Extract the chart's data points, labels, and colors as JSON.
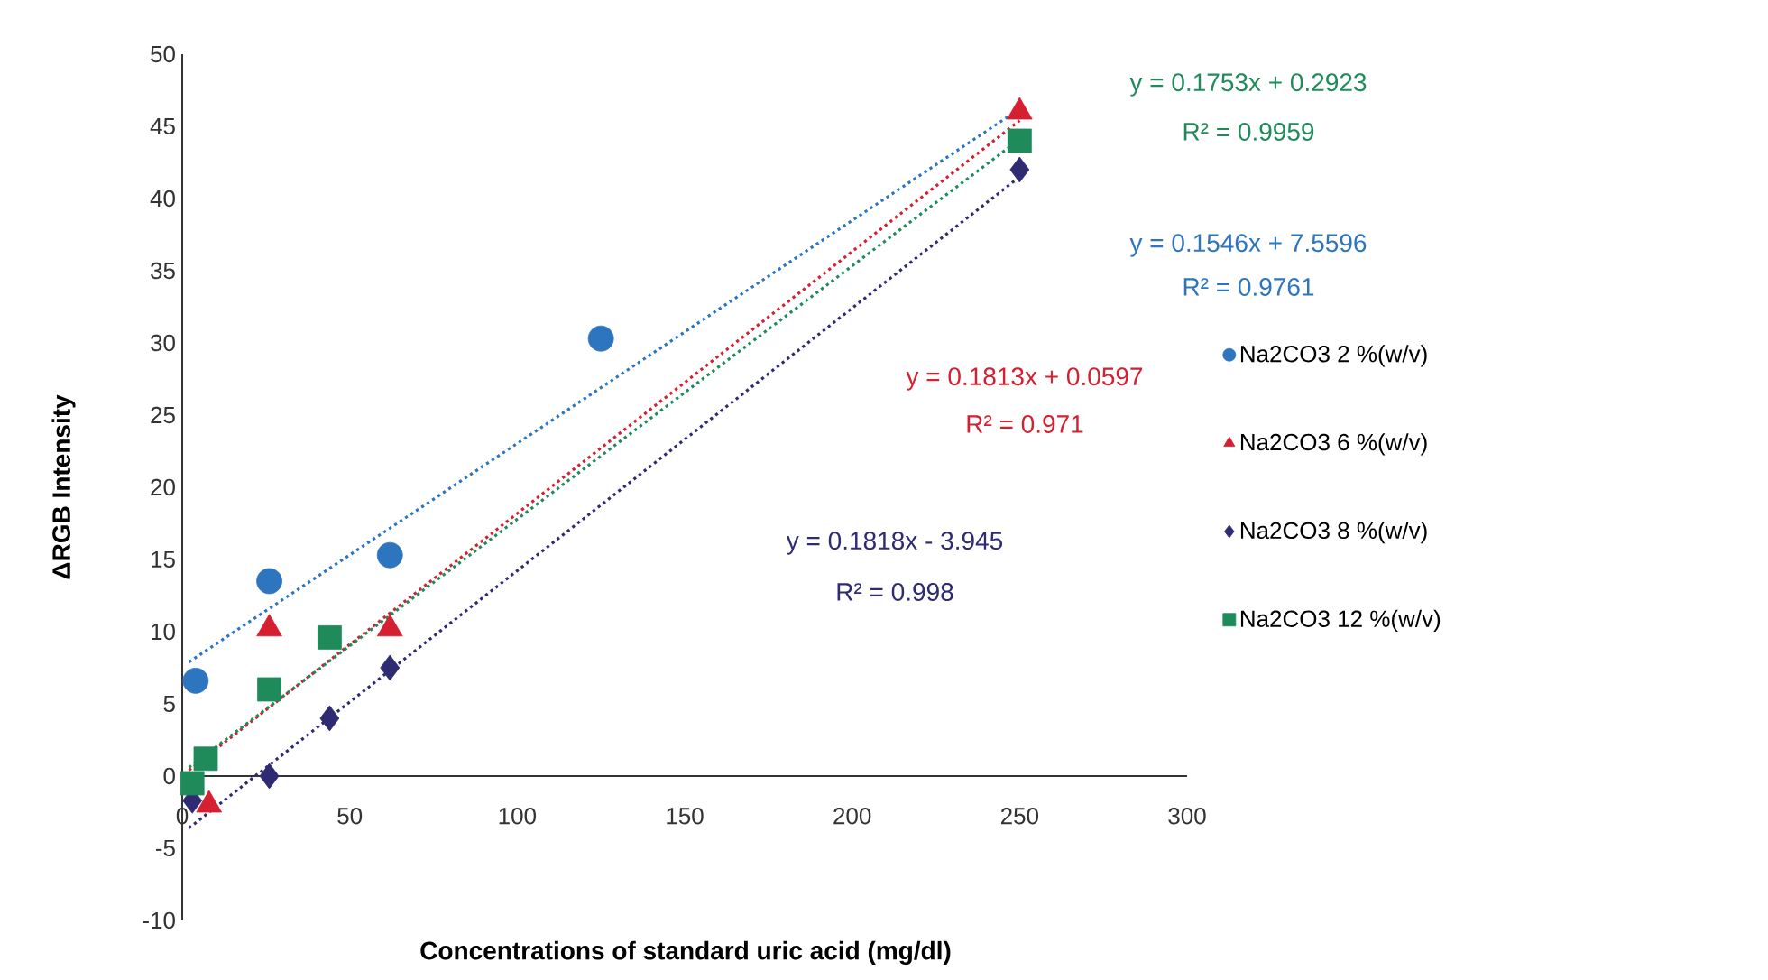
{
  "chart_data": {
    "type": "scatter",
    "xlabel": "Concentrations of standard uric acid (mg/dl)",
    "ylabel": "ΔRGB Intensity",
    "xlim": [
      0,
      300
    ],
    "ylim": [
      -10,
      50
    ],
    "xticks": [
      0,
      50,
      100,
      150,
      200,
      250,
      300
    ],
    "yticks": [
      -10,
      -5,
      0,
      5,
      10,
      15,
      20,
      25,
      30,
      35,
      40,
      45,
      50
    ],
    "grid": false,
    "legend": "right",
    "line_style": "dotted",
    "series": [
      {
        "name": "Na2CO3 2 %(w/v)",
        "color": "#2e75c0",
        "marker": "circle",
        "x": [
          4,
          26,
          62,
          125
        ],
        "values": [
          6.6,
          13.5,
          15.3,
          30.3
        ]
      },
      {
        "name": "Na2CO3 6 %(w/v)",
        "color": "#d42030",
        "marker": "triangle",
        "x": [
          8,
          26,
          62,
          250
        ],
        "values": [
          -2,
          10.2,
          10.2,
          46
        ]
      },
      {
        "name": "Na2CO3 8 %(w/v)",
        "color": "#2f2b72",
        "marker": "diamond",
        "x": [
          3,
          26,
          44,
          62,
          250
        ],
        "values": [
          -1.7,
          0,
          4,
          7.5,
          42
        ]
      },
      {
        "name": "Na2CO3 12 %(w/v)",
        "color": "#1f8a5a",
        "marker": "square",
        "x": [
          3,
          7,
          26,
          44,
          250
        ],
        "values": [
          -0.5,
          1.2,
          6,
          9.6,
          44
        ]
      },
      {
        "type": "line",
        "color": "#2e75c0",
        "x": [
          2,
          250
        ],
        "values": [
          7.9,
          46.2
        ]
      },
      {
        "type": "line",
        "color": "#d42030",
        "x": [
          2,
          250
        ],
        "values": [
          0.4,
          45.4
        ]
      },
      {
        "type": "line",
        "color": "#2f2b72",
        "x": [
          2,
          250
        ],
        "values": [
          -3.6,
          41.5
        ]
      },
      {
        "type": "line",
        "color": "#1f8a5a",
        "x": [
          2,
          250
        ],
        "values": [
          0.6,
          44.1
        ]
      }
    ],
    "annotations": [
      "y = 0.1753x + 0.2923",
      "R² = 0.9959",
      "y = 0.1546x + 7.5596",
      "R² = 0.9761",
      "y = 0.1813x + 0.0597",
      "R² = 0.971",
      "y = 0.1818x - 3.945",
      "R² = 0.998"
    ]
  }
}
